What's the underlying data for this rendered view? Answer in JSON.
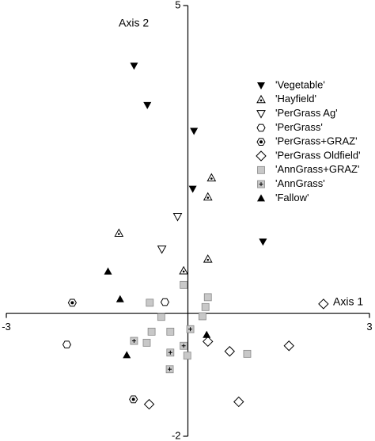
{
  "chart_data": {
    "type": "scatter",
    "xlabel": "Axis 1",
    "ylabel": "Axis 2",
    "xlim": [
      -3,
      3
    ],
    "ylim": [
      -2,
      5
    ],
    "xticks": [
      -3,
      3
    ],
    "yticks": [
      -2,
      5
    ],
    "legend": "upper right",
    "series": [
      {
        "name": "'Vegetable'",
        "marker": "triangle-down-filled",
        "color": "#000000",
        "x": [
          -0.89,
          -0.67,
          0.1,
          0.08,
          1.24
        ],
        "y": [
          4.02,
          3.38,
          2.96,
          2.02,
          1.16
        ]
      },
      {
        "name": "'Hayfield'",
        "marker": "triangle-up-dot",
        "color": "#000000",
        "x": [
          0.39,
          0.33,
          -1.14,
          0.33,
          -0.07
        ],
        "y": [
          2.2,
          1.89,
          1.3,
          0.88,
          0.69
        ]
      },
      {
        "name": "'PerGrass Ag'",
        "marker": "triangle-down-open",
        "color": "#000000",
        "x": [
          -0.17,
          -0.43
        ],
        "y": [
          1.57,
          1.04
        ]
      },
      {
        "name": "'PerGrass'",
        "marker": "hexagon-open",
        "color": "#000000",
        "x": [
          -0.38,
          -2.0
        ],
        "y": [
          0.18,
          -0.51
        ]
      },
      {
        "name": "'PerGrass+GRAZ'",
        "marker": "hexagon-dot",
        "color": "#000000",
        "x": [
          -1.91,
          -0.9
        ],
        "y": [
          0.17,
          -1.4
        ]
      },
      {
        "name": "'PerGrass Oldfield'",
        "marker": "diamond-open",
        "color": "#000000",
        "x": [
          2.24,
          0.33,
          0.69,
          1.67,
          0.84,
          -0.64
        ],
        "y": [
          0.15,
          -0.46,
          -0.62,
          -0.53,
          -1.44,
          -1.48
        ]
      },
      {
        "name": "'AnnGrass+GRAZ'",
        "marker": "square-grey",
        "color": "#c8c8c8",
        "x": [
          -0.07,
          0.33,
          0.29,
          -0.63,
          -0.44,
          0.24,
          -0.6,
          -0.29,
          -0.68,
          -0.01,
          0.98
        ],
        "y": [
          0.46,
          0.26,
          0.1,
          0.17,
          -0.06,
          -0.05,
          -0.3,
          -0.3,
          -0.48,
          -0.69,
          -0.66
        ]
      },
      {
        "name": "'AnnGrass'",
        "marker": "square-plus",
        "color": "#c8c8c8",
        "x": [
          -0.89,
          -0.29,
          -0.07,
          -0.3,
          0.04
        ],
        "y": [
          -0.45,
          -0.64,
          -0.53,
          -0.91,
          -0.26
        ]
      },
      {
        "name": "'Fallow'",
        "marker": "triangle-up-filled",
        "color": "#000000",
        "x": [
          -1.32,
          -1.12,
          -1.01,
          0.31
        ],
        "y": [
          0.68,
          0.23,
          -0.68,
          -0.35
        ]
      }
    ]
  }
}
